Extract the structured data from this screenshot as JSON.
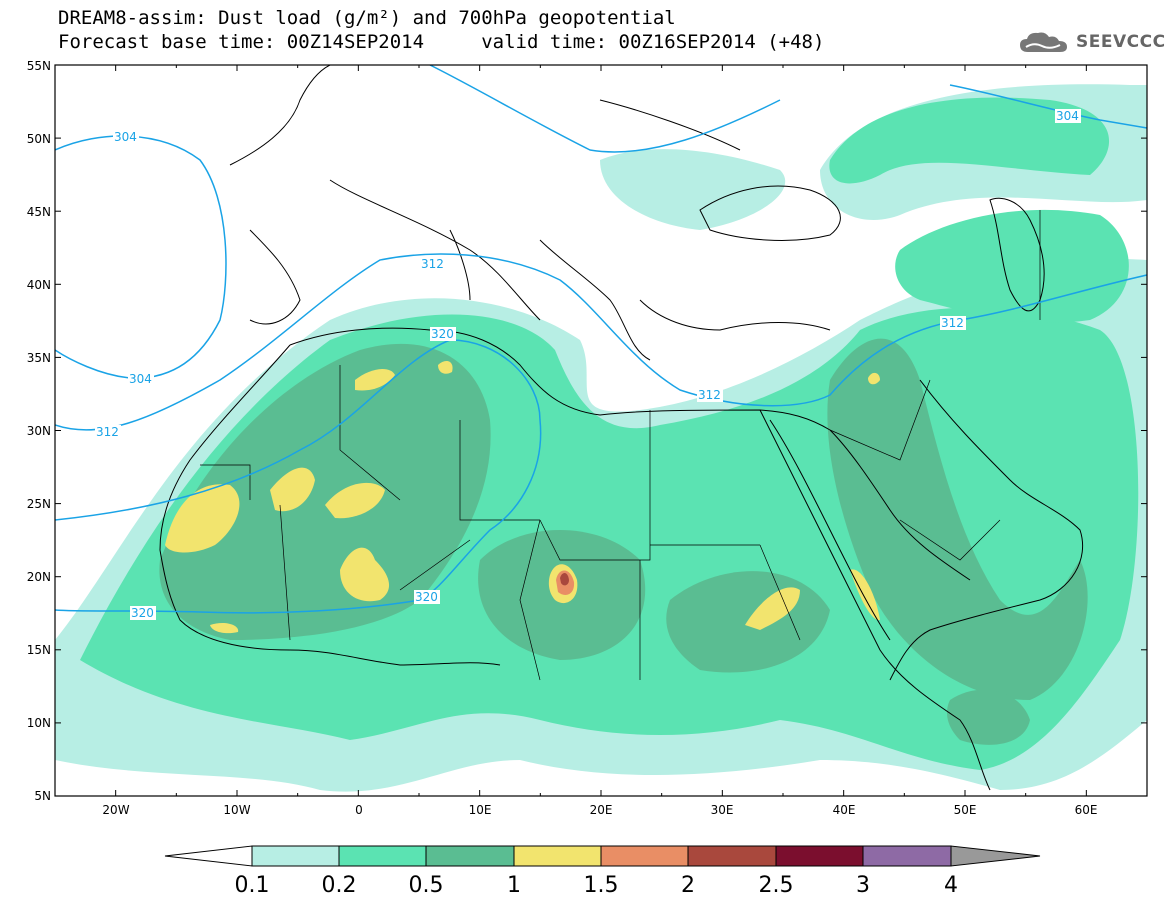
{
  "header": {
    "title_line1": "DREAM8-assim: Dust load (g/m²) and 700hPa geopotential",
    "title_line2": "Forecast base time: 00Z14SEP2014     valid time: 00Z16SEP2014 (+48)"
  },
  "logo": {
    "text": "SEEVCCC",
    "icon": "cloud-icon"
  },
  "map": {
    "lon_range": [
      -25,
      65
    ],
    "lat_range": [
      5,
      55
    ],
    "lat_labels": [
      "55N",
      "50N",
      "45N",
      "40N",
      "35N",
      "30N",
      "25N",
      "20N",
      "15N",
      "10N",
      "5N"
    ],
    "lon_labels": [
      "20W",
      "10W",
      "0",
      "10E",
      "20E",
      "30E",
      "40E",
      "50E",
      "60E"
    ],
    "contour_labels": [
      "304",
      "304",
      "304",
      "312",
      "312",
      "312",
      "312",
      "320",
      "320",
      "320"
    ],
    "colors": {
      "ocean": "#ffffff",
      "coast": "#000000",
      "contour": "#1aa3e6"
    }
  },
  "colorbar": {
    "labels": [
      "0.1",
      "0.2",
      "0.5",
      "1",
      "1.5",
      "2",
      "2.5",
      "3",
      "4"
    ],
    "colors": [
      "#b7eee4",
      "#5be3b2",
      "#5abd92",
      "#f2e46e",
      "#e98e65",
      "#a9483d",
      "#7b0e2e",
      "#8e6aa5"
    ],
    "under_color": "#ffffff",
    "over_color": "#999999"
  }
}
